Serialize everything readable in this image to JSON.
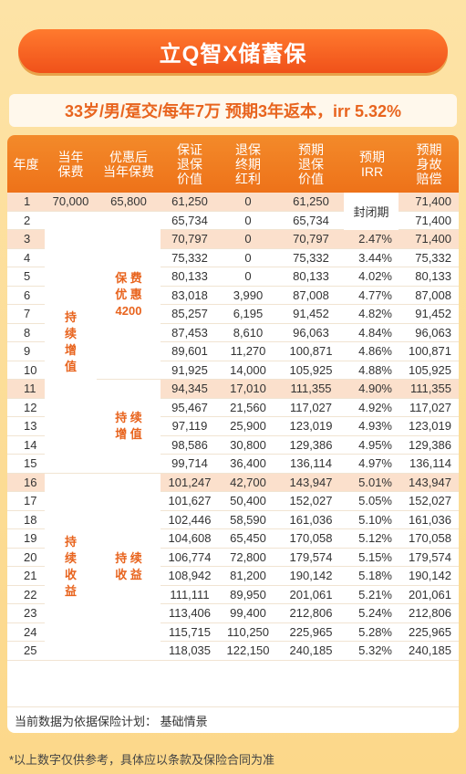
{
  "banner": {
    "title": "立Q智X储蓄保"
  },
  "subtitle": "33岁/男/趸交/每年7万  预期3年返本，irr 5.32%",
  "table": {
    "headers": [
      "年度",
      "当年\n保费",
      "优惠后\n当年保费",
      "保证\n退保\n价值",
      "退保\n终期\n红利",
      "预期\n退保\n价值",
      "预期\nIRR",
      "预期\n身故\n赔偿"
    ],
    "rows": [
      [
        "1",
        "70,000",
        "65,800",
        "61,250",
        "0",
        "61,250",
        "",
        "71,400"
      ],
      [
        "2",
        "",
        "",
        "65,734",
        "0",
        "65,734",
        "",
        "71,400"
      ],
      [
        "3",
        "",
        "",
        "70,797",
        "0",
        "70,797",
        "2.47%",
        "71,400"
      ],
      [
        "4",
        "",
        "",
        "75,332",
        "0",
        "75,332",
        "3.44%",
        "75,332"
      ],
      [
        "5",
        "",
        "",
        "80,133",
        "0",
        "80,133",
        "4.02%",
        "80,133"
      ],
      [
        "6",
        "",
        "",
        "83,018",
        "3,990",
        "87,008",
        "4.77%",
        "87,008"
      ],
      [
        "7",
        "",
        "",
        "85,257",
        "6,195",
        "91,452",
        "4.82%",
        "91,452"
      ],
      [
        "8",
        "",
        "",
        "87,453",
        "8,610",
        "96,063",
        "4.84%",
        "96,063"
      ],
      [
        "9",
        "",
        "",
        "89,601",
        "11,270",
        "100,871",
        "4.86%",
        "100,871"
      ],
      [
        "10",
        "",
        "",
        "91,925",
        "14,000",
        "105,925",
        "4.88%",
        "105,925"
      ],
      [
        "11",
        "",
        "",
        "94,345",
        "17,010",
        "111,355",
        "4.90%",
        "111,355"
      ],
      [
        "12",
        "",
        "",
        "95,467",
        "21,560",
        "117,027",
        "4.92%",
        "117,027"
      ],
      [
        "13",
        "",
        "",
        "97,119",
        "25,900",
        "123,019",
        "4.93%",
        "123,019"
      ],
      [
        "14",
        "",
        "",
        "98,586",
        "30,800",
        "129,386",
        "4.95%",
        "129,386"
      ],
      [
        "15",
        "",
        "",
        "99,714",
        "36,400",
        "136,114",
        "4.97%",
        "136,114"
      ],
      [
        "16",
        "",
        "",
        "101,247",
        "42,700",
        "143,947",
        "5.01%",
        "143,947"
      ],
      [
        "17",
        "",
        "",
        "101,627",
        "50,400",
        "152,027",
        "5.05%",
        "152,027"
      ],
      [
        "18",
        "",
        "",
        "102,446",
        "58,590",
        "161,036",
        "5.10%",
        "161,036"
      ],
      [
        "19",
        "",
        "",
        "104,608",
        "65,450",
        "170,058",
        "5.12%",
        "170,058"
      ],
      [
        "20",
        "",
        "",
        "106,774",
        "72,800",
        "179,574",
        "5.15%",
        "179,574"
      ],
      [
        "21",
        "",
        "",
        "108,942",
        "81,200",
        "190,142",
        "5.18%",
        "190,142"
      ],
      [
        "22",
        "",
        "",
        "111,111",
        "89,950",
        "201,061",
        "5.21%",
        "201,061"
      ],
      [
        "23",
        "",
        "",
        "113,406",
        "99,400",
        "212,806",
        "5.24%",
        "212,806"
      ],
      [
        "24",
        "",
        "",
        "115,715",
        "110,250",
        "225,965",
        "5.28%",
        "225,965"
      ],
      [
        "25",
        "",
        "",
        "118,035",
        "122,150",
        "240,185",
        "5.32%",
        "240,185"
      ]
    ],
    "highlight_years": [
      "1",
      "3",
      "11",
      "16"
    ],
    "closed_period": "封闭期",
    "col1_groups": [
      "持\n续\n增\n值",
      "持\n续\n收\n益"
    ],
    "col2_groups": [
      "保 费\n优 惠\n4200",
      "持 续\n增 值",
      "持 续\n收 益"
    ],
    "footer": "当前数据为依据保险计划：  基础情景"
  },
  "note": "*以上数字仅供参考，具体应以条款及保险合同为准"
}
